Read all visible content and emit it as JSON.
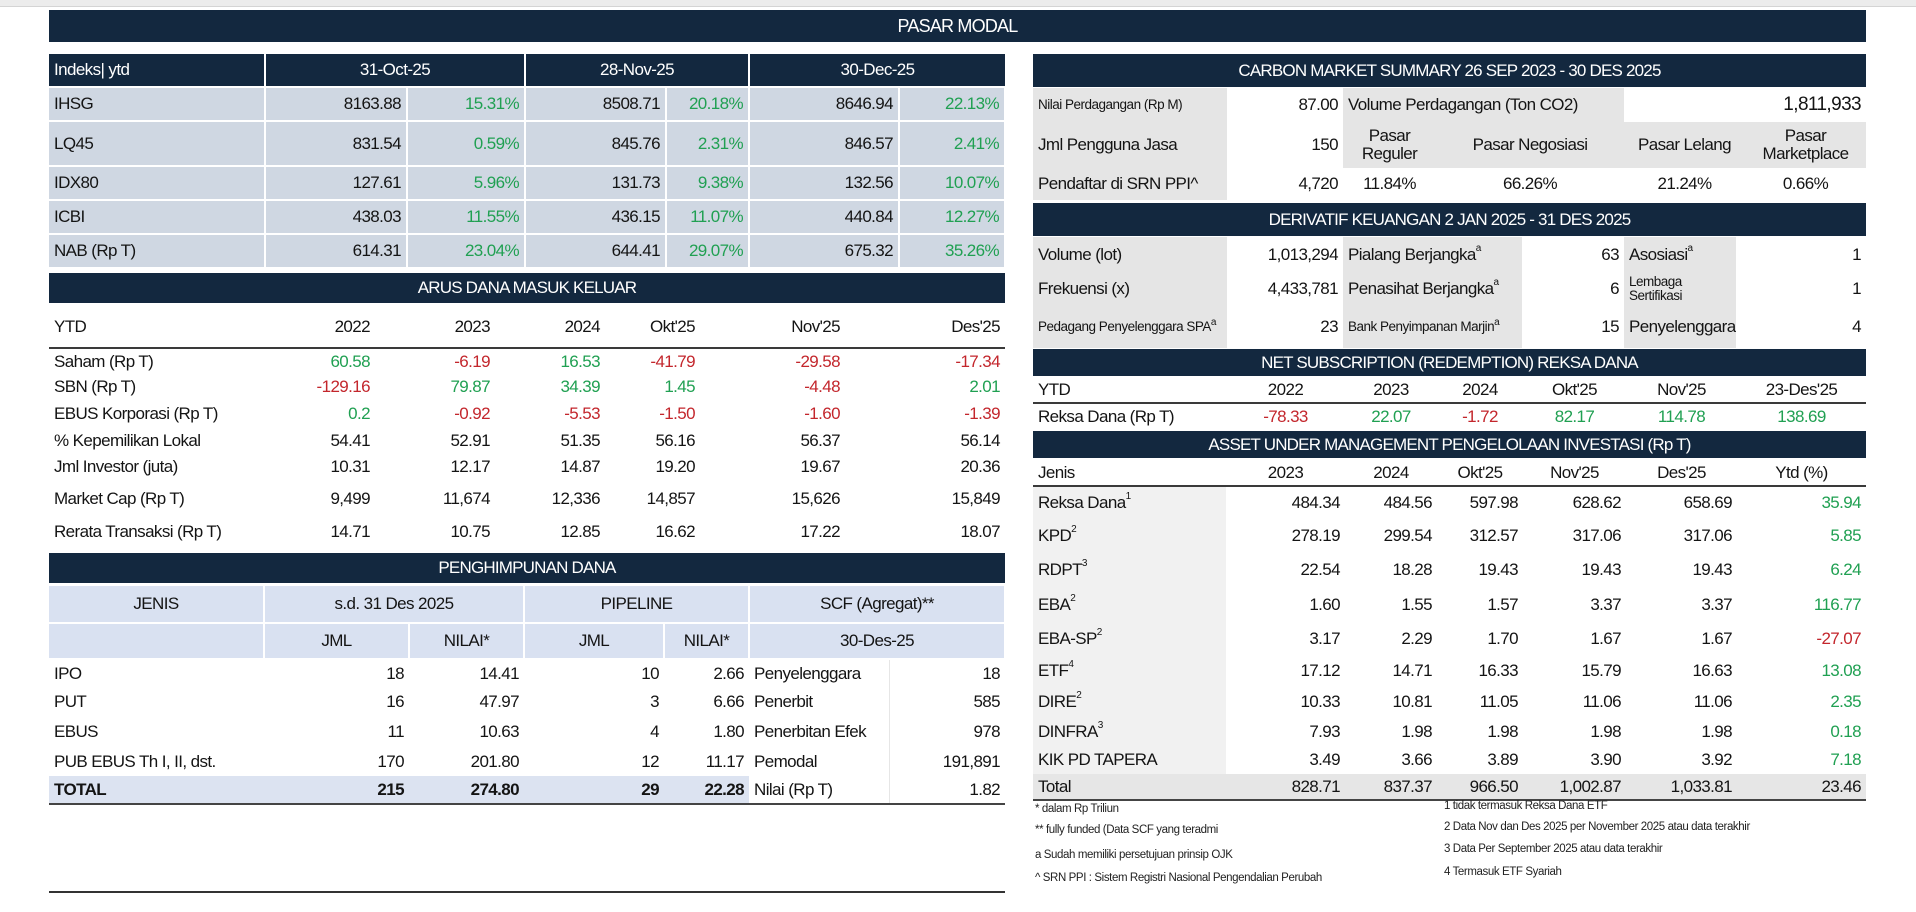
{
  "title": "PASAR MODAL",
  "colors": {
    "header": "#13283f",
    "positive": "#20a052",
    "negative": "#c3262c"
  },
  "index": {
    "label": "Indeks| ytd",
    "dates": [
      "31-Oct-25",
      "28-Nov-25",
      "30-Dec-25"
    ],
    "rows": [
      {
        "name": "IHSG",
        "values": [
          "8163.88",
          "15.31%",
          "8508.71",
          "20.18%",
          "8646.94",
          "22.13%"
        ]
      },
      {
        "name": "LQ45",
        "values": [
          "831.54",
          "0.59%",
          "845.76",
          "2.31%",
          "846.57",
          "2.41%"
        ]
      },
      {
        "name": "IDX80",
        "values": [
          "127.61",
          "5.96%",
          "131.73",
          "9.38%",
          "132.56",
          "10.07%"
        ]
      },
      {
        "name": "ICBI",
        "values": [
          "438.03",
          "11.55%",
          "436.15",
          "11.07%",
          "440.84",
          "12.27%"
        ]
      },
      {
        "name": "NAB (Rp T)",
        "values": [
          "614.31",
          "23.04%",
          "644.41",
          "29.07%",
          "675.32",
          "35.26%"
        ]
      }
    ]
  },
  "arus": {
    "title": "ARUS DANA MASUK KELUAR",
    "headers": [
      "YTD",
      "2022",
      "2023",
      "2024",
      "Okt'25",
      "Nov'25",
      "Des'25"
    ],
    "rows": [
      {
        "name": "Saham (Rp T)",
        "values": [
          "60.58",
          "-6.19",
          "16.53",
          "-41.79",
          "-29.58",
          "-17.34"
        ],
        "tones": [
          "positive",
          "negative",
          "positive",
          "negative",
          "negative",
          "negative"
        ]
      },
      {
        "name": "SBN (Rp T)",
        "values": [
          "-129.16",
          "79.87",
          "34.39",
          "1.45",
          "-4.48",
          "2.01"
        ],
        "tones": [
          "negative",
          "positive",
          "positive",
          "positive",
          "negative",
          "positive"
        ]
      },
      {
        "name": "EBUS Korporasi (Rp T)",
        "values": [
          "0.2",
          "-0.92",
          "-5.53",
          "-1.50",
          "-1.60",
          "-1.39"
        ],
        "tones": [
          "positive",
          "negative",
          "negative",
          "negative",
          "negative",
          "negative"
        ]
      },
      {
        "name": "% Kepemilikan Lokal",
        "values": [
          "54.41",
          "52.91",
          "51.35",
          "56.16",
          "56.37",
          "56.14"
        ],
        "tones": [
          "",
          "",
          "",
          "",
          "",
          ""
        ]
      },
      {
        "name": "Jml Investor (juta)",
        "values": [
          "10.31",
          "12.17",
          "14.87",
          "19.20",
          "19.67",
          "20.36"
        ],
        "tones": [
          "",
          "",
          "",
          "",
          "",
          ""
        ]
      },
      {
        "name": "Market Cap (Rp T)",
        "values": [
          "9,499",
          "11,674",
          "12,336",
          "14,857",
          "15,626",
          "15,849"
        ],
        "tones": [
          "",
          "",
          "",
          "",
          "",
          ""
        ]
      },
      {
        "name": "Rerata Transaksi (Rp T)",
        "values": [
          "14.71",
          "10.75",
          "12.85",
          "16.62",
          "17.22",
          "18.07"
        ],
        "tones": [
          "",
          "",
          "",
          "",
          "",
          ""
        ]
      }
    ]
  },
  "penghimpunan": {
    "title": "PENGHIMPUNAN DANA",
    "headers": [
      "JENIS",
      "s.d. 31 Des 2025",
      "PIPELINE",
      "SCF (Agregat)**"
    ],
    "subheaders": [
      "JML",
      "NILAI*",
      "JML",
      "NILAI*",
      "30-Des-25"
    ],
    "rows": [
      {
        "name": "IPO",
        "values": [
          "18",
          "14.41",
          "10",
          "2.66"
        ],
        "scf_label": "Penyelenggara",
        "scf_value": "18"
      },
      {
        "name": "PUT",
        "values": [
          "16",
          "47.97",
          "3",
          "6.66"
        ],
        "scf_label": "Penerbit",
        "scf_value": "585"
      },
      {
        "name": "EBUS",
        "values": [
          "11",
          "10.63",
          "4",
          "1.80"
        ],
        "scf_label": "Penerbitan Efek",
        "scf_value": "978"
      },
      {
        "name": "PUB EBUS Th I, II, dst.",
        "values": [
          "170",
          "201.80",
          "12",
          "11.17"
        ],
        "scf_label": "Pemodal",
        "scf_value": "191,891"
      },
      {
        "name": "TOTAL",
        "values": [
          "215",
          "274.80",
          "29",
          "22.28"
        ],
        "scf_label": "Nilai (Rp T)",
        "scf_value": "1.82"
      }
    ]
  },
  "carbon": {
    "title": "CARBON MARKET SUMMARY 26 SEP 2023 - 30 DES 2025",
    "nilai_label": "Nilai Perdagangan (Rp M)",
    "nilai_value": "87.00",
    "volume_label": "Volume Perdagangan (Ton CO2)",
    "volume_value": "1,811,933",
    "pengguna_label": "Jml Pengguna Jasa",
    "pengguna_value": "150",
    "markets": [
      "Pasar Reguler",
      "Pasar Negosiasi",
      "Pasar Lelang",
      "Pasar Marketplace"
    ],
    "pendaftar_label": "Pendaftar di SRN PPI^",
    "pendaftar_value": "4,720",
    "shares": [
      "11.84%",
      "66.26%",
      "21.24%",
      "0.66%"
    ]
  },
  "derivatif": {
    "title": "DERIVATIF KEUANGAN 2 JAN 2025 - 31 DES 2025",
    "rows": [
      {
        "label": "Volume (lot)",
        "value": "1,013,294",
        "label2": "Pialang Berjangka",
        "sup2": "a",
        "value2": "63",
        "label3": "Asosiasi",
        "sup3": "a",
        "value3": "1"
      },
      {
        "label": "Frekuensi (x)",
        "value": "4,433,781",
        "label2": "Penasihat Berjangka",
        "sup2": "a",
        "value2": "6",
        "label3": "Lembaga Sertifikasi",
        "sup3": "",
        "value3": "1"
      },
      {
        "label": "Pedagang Penyelenggara SPA",
        "sup": "a",
        "value": "23",
        "label2": "Bank Penyimpanan Marjin",
        "sup2": "a",
        "value2": "15",
        "label3": "Penyelenggara",
        "sup3": "",
        "value3": "4"
      }
    ]
  },
  "netsub": {
    "title": "NET SUBSCRIPTION (REDEMPTION) REKSA DANA",
    "headers": [
      "YTD",
      "2022",
      "2023",
      "2024",
      "Okt'25",
      "Nov'25",
      "23-Des'25"
    ],
    "row": {
      "name": "Reksa Dana (Rp T)",
      "values": [
        "-78.33",
        "22.07",
        "-1.72",
        "82.17",
        "114.78",
        "138.69"
      ],
      "tones": [
        "negative",
        "positive",
        "negative",
        "positive",
        "positive",
        "positive"
      ]
    }
  },
  "aum": {
    "title": "ASSET UNDER MANAGEMENT PENGELOLAAN INVESTASI (Rp T)",
    "headers": [
      "Jenis",
      "2023",
      "2024",
      "Okt'25",
      "Nov'25",
      "Des'25",
      "Ytd (%)"
    ],
    "rows": [
      {
        "name": "Reksa Dana",
        "sup": "1",
        "values": [
          "484.34",
          "484.56",
          "597.98",
          "628.62",
          "658.69",
          "35.94"
        ],
        "ytd_tone": "positive"
      },
      {
        "name": "KPD",
        "sup": "2",
        "values": [
          "278.19",
          "299.54",
          "312.57",
          "317.06",
          "317.06",
          "5.85"
        ],
        "ytd_tone": "positive"
      },
      {
        "name": "RDPT",
        "sup": "3",
        "values": [
          "22.54",
          "18.28",
          "19.43",
          "19.43",
          "19.43",
          "6.24"
        ],
        "ytd_tone": "positive"
      },
      {
        "name": "EBA",
        "sup": "2",
        "values": [
          "1.60",
          "1.55",
          "1.57",
          "3.37",
          "3.37",
          "116.77"
        ],
        "ytd_tone": "positive"
      },
      {
        "name": "EBA-SP",
        "sup": "2",
        "values": [
          "3.17",
          "2.29",
          "1.70",
          "1.67",
          "1.67",
          "-27.07"
        ],
        "ytd_tone": "negative"
      },
      {
        "name": "ETF",
        "sup": "4",
        "values": [
          "17.12",
          "14.71",
          "16.33",
          "15.79",
          "16.63",
          "13.08"
        ],
        "ytd_tone": "positive"
      },
      {
        "name": "DIRE",
        "sup": "2",
        "values": [
          "10.33",
          "10.81",
          "11.05",
          "11.06",
          "11.06",
          "2.35"
        ],
        "ytd_tone": "positive"
      },
      {
        "name": "DINFRA",
        "sup": "3",
        "values": [
          "7.93",
          "1.98",
          "1.98",
          "1.98",
          "1.98",
          "0.18"
        ],
        "ytd_tone": "positive"
      },
      {
        "name": "KIK PD TAPERA",
        "sup": "",
        "values": [
          "3.49",
          "3.66",
          "3.89",
          "3.90",
          "3.92",
          "7.18"
        ],
        "ytd_tone": "positive"
      }
    ],
    "total": {
      "name": "Total",
      "values": [
        "828.71",
        "837.37",
        "966.50",
        "1,002.87",
        "1,033.81",
        "23.46"
      ]
    }
  },
  "footnotes_left": [
    "*  dalam Rp Triliun",
    "** fully funded (Data SCF yang teradmi",
    "a Sudah memiliki persetujuan prinsip OJK",
    "^ SRN PPI : Sistem Registri Nasional Pengendalian Perubah"
  ],
  "footnotes_right": [
    "1 tidak termasuk Reksa Dana ETF",
    "2 Data Nov dan Des 2025 per November 2025 atau data terakhir",
    "3 Data Per September 2025 atau data terakhir",
    "4 Termasuk ETF Syariah"
  ]
}
